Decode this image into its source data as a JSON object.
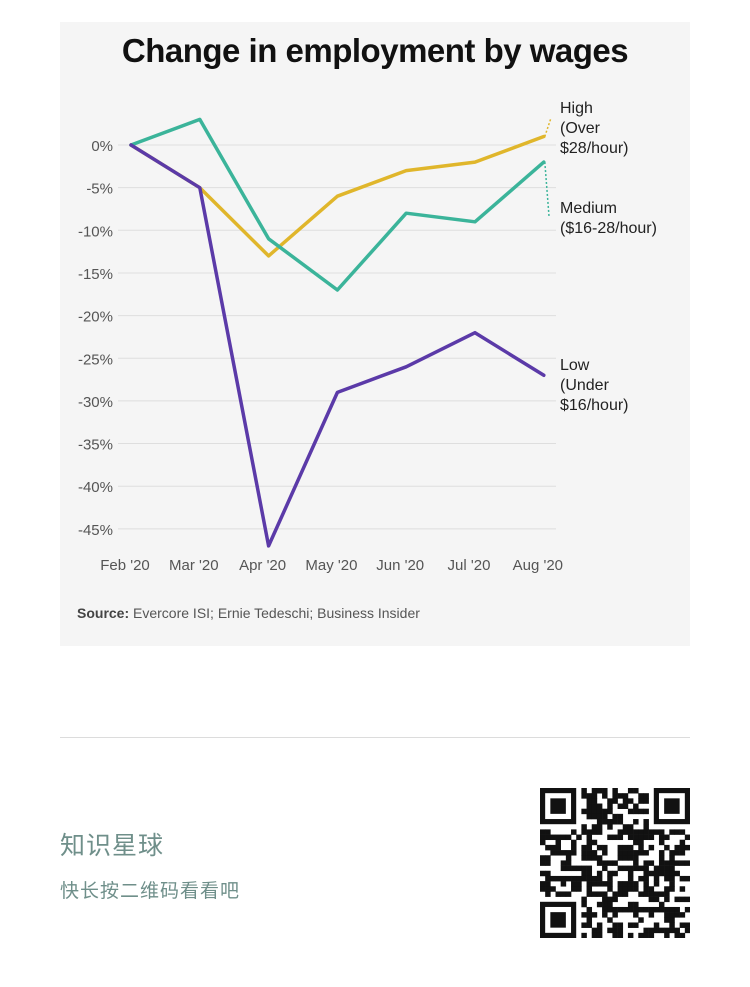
{
  "chart_data": {
    "type": "line",
    "title": "Change in employment by wages",
    "categories": [
      "Feb '20",
      "Mar '20",
      "Apr '20",
      "May '20",
      "Jun '20",
      "Jul '20",
      "Aug '20"
    ],
    "yticks": [
      "0%",
      "-5%",
      "-10%",
      "-15%",
      "-20%",
      "-25%",
      "-30%",
      "-35%",
      "-40%",
      "-45%"
    ],
    "ylim": [
      -47,
      3
    ],
    "grid": true,
    "series": [
      {
        "name": "High (Over $28/hour)",
        "label_lines": [
          "High",
          "(Over",
          "$28/hour)"
        ],
        "color": "#e0b62b",
        "values": [
          0,
          -5,
          -13,
          -6,
          -3,
          -2,
          1
        ]
      },
      {
        "name": "Medium ($16-28/hour)",
        "label_lines": [
          "Medium",
          "($16-28/hour)"
        ],
        "color": "#3bb49a",
        "values": [
          0,
          3,
          -11,
          -17,
          -8,
          -9,
          -2
        ]
      },
      {
        "name": "Low (Under $16/hour)",
        "label_lines": [
          "Low",
          "(Under",
          "$16/hour)"
        ],
        "color": "#5b3aa8",
        "values": [
          0,
          -5,
          -47,
          -29,
          -26,
          -22,
          -27
        ]
      }
    ]
  },
  "source": {
    "label": "Source:",
    "text": " Evercore ISI; Ernie Tedeschi; Business Insider"
  },
  "footer": {
    "title": "知识星球",
    "subtitle": "快长按二维码看看吧"
  },
  "qr": {
    "icon": "qr-code-icon"
  }
}
